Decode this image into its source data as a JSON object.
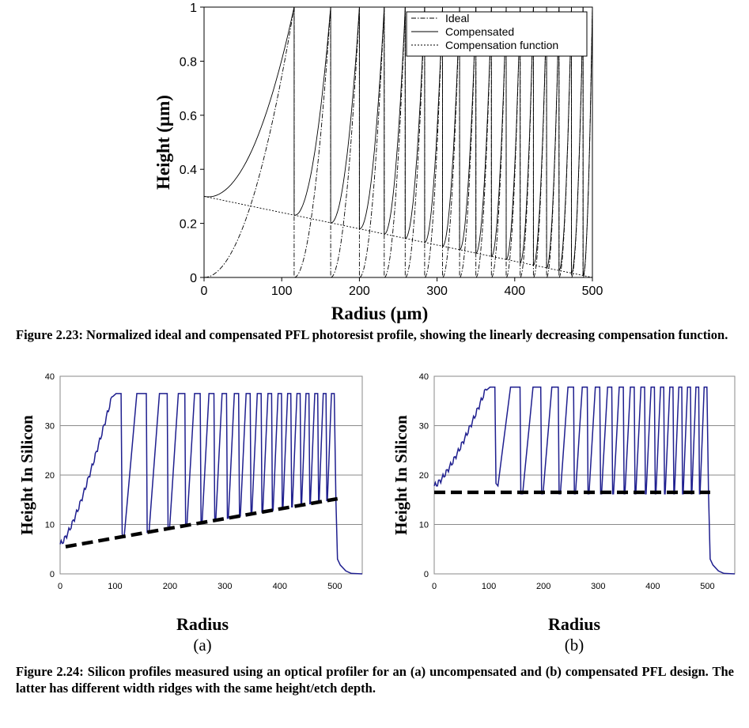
{
  "figures": [
    {
      "caption": "Figure 2.23: Normalized ideal and compensated PFL photoresist profile, showing the linearly decreasing compensation function."
    },
    {
      "caption": "Figure 2.24: Silicon profiles measured using an optical profiler for an (a) uncompensated and (b) compensated PFL design. The latter has different width ridges with the same height/etch depth."
    }
  ],
  "chart_data": [
    {
      "id": "fig223",
      "type": "line",
      "xlabel": "Radius (µm)",
      "ylabel": "Height (µm)",
      "xlim": [
        0,
        500
      ],
      "ylim": [
        0,
        1
      ],
      "xticks": [
        0,
        100,
        200,
        300,
        400,
        500
      ],
      "yticks": [
        0,
        0.2,
        0.4,
        0.6,
        0.8,
        1
      ],
      "grid": false,
      "legend_position": "top-right",
      "zone_boundaries": [
        0,
        116,
        163,
        200,
        232,
        259,
        284,
        307,
        329,
        350,
        370,
        389,
        407,
        424,
        441,
        457,
        473,
        488,
        500
      ],
      "series": [
        {
          "name": "Ideal",
          "style": "dash-dot",
          "description": "parabolic ramp from 0 to 1 in each zone"
        },
        {
          "name": "Compensated",
          "style": "solid",
          "description": "ramp from compensation value to 1 in each zone"
        },
        {
          "name": "Compensation function",
          "style": "dotted",
          "x": [
            0,
            500
          ],
          "y": [
            0.3,
            0
          ]
        }
      ]
    },
    {
      "id": "fig224a",
      "type": "line",
      "panel_label": "(a)",
      "xlabel": "Radius",
      "ylabel": "Height In Silicon",
      "xlim": [
        0,
        550
      ],
      "ylim": [
        0,
        40
      ],
      "xticks": [
        0,
        100,
        200,
        300,
        400,
        500
      ],
      "yticks": [
        0,
        10,
        20,
        30,
        40
      ],
      "grid": true,
      "color": "#1f1f8f",
      "plateau_height": 36.5,
      "zone_boundaries": [
        0,
        112,
        158,
        196,
        228,
        256,
        281,
        304,
        326,
        347,
        367,
        386,
        404,
        421,
        438,
        454,
        470,
        485,
        500
      ],
      "baseline_dashed": {
        "x": [
          10,
          505
        ],
        "y": [
          5.5,
          15.2
        ]
      }
    },
    {
      "id": "fig224b",
      "type": "line",
      "panel_label": "(b)",
      "xlabel": "Radius",
      "ylabel": "Height In Silicon",
      "xlim": [
        0,
        550
      ],
      "ylim": [
        0,
        40
      ],
      "xticks": [
        0,
        100,
        200,
        300,
        400,
        500
      ],
      "yticks": [
        0,
        10,
        20,
        30,
        40
      ],
      "grid": true,
      "color": "#1f1f8f",
      "plateau_height": 37.8,
      "zone_boundaries": [
        0,
        112,
        158,
        196,
        228,
        256,
        281,
        304,
        326,
        347,
        367,
        386,
        404,
        421,
        438,
        454,
        470,
        485,
        500
      ],
      "baseline_dashed": {
        "x": [
          0,
          505
        ],
        "y": [
          16.5,
          16.5
        ]
      }
    }
  ]
}
